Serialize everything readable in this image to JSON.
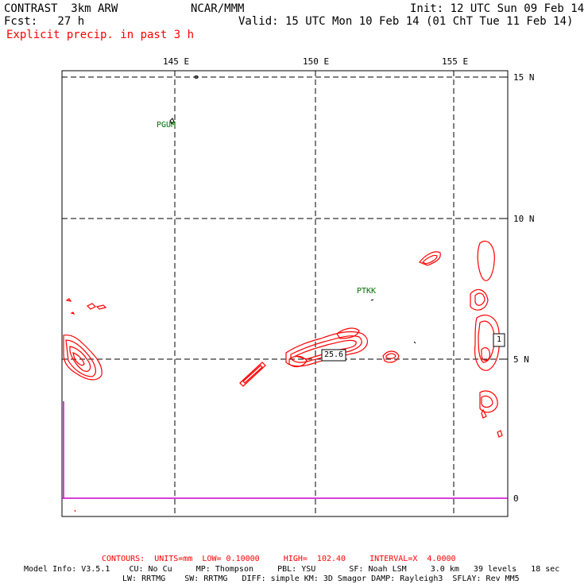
{
  "header": {
    "model_name": "CONTRAST  3km ARW",
    "center": "NCAR/MMM",
    "init": "Init: 12 UTC Sun 09 Feb 14",
    "fcst": "Fcst:   27 h",
    "valid": "Valid: 15 UTC Mon 10 Feb 14 (01 ChT Tue 11 Feb 14)",
    "field_title": "Explicit precip. in past 3 h"
  },
  "axes": {
    "lon_ticks": [
      "145 E",
      "150 E",
      "155 E"
    ],
    "lat_ticks": [
      "15 N",
      "10 N",
      "5 N",
      "0"
    ]
  },
  "map": {
    "stations": [
      "PGUM",
      "PTKK"
    ],
    "max_label": "25.6",
    "box_label": "1"
  },
  "footer": {
    "contours": "CONTOURS:  UNITS=mm  LOW= 0.10000     HIGH=  102.40     INTERVAL=X  4.0000",
    "model_info_1": "Model Info: V3.5.1    CU: No Cu     MP: Thompson     PBL: YSU       SF: Noah LSM     3.0 km   39 levels   18 sec",
    "model_info_2": "LW: RRTMG    SW: RRTMG   DIFF: simple KM: 3D Smagor DAMP: Rayleigh3  SFLAY: Rev MM5"
  },
  "colors": {
    "precip_contour": "#ff0000",
    "equator_line": "#cc00cc",
    "station_label": "#007000",
    "grid": "#000000"
  }
}
